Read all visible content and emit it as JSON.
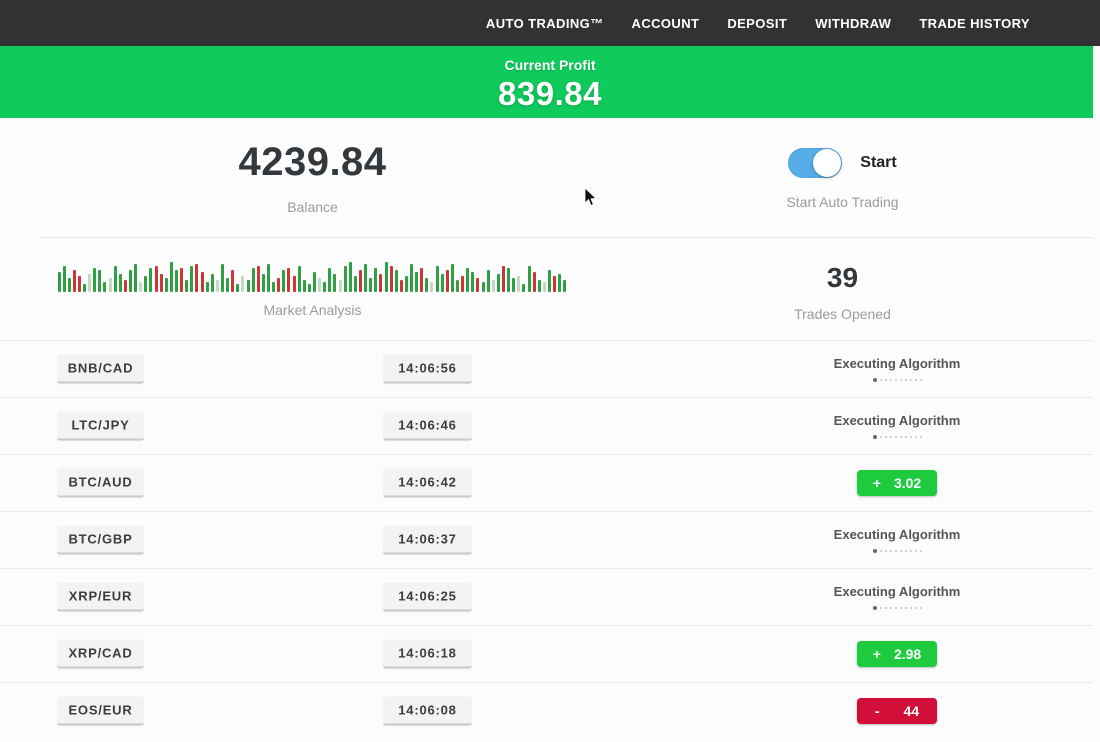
{
  "nav": {
    "items": [
      "AUTO TRADING™",
      "ACCOUNT",
      "DEPOSIT",
      "WITHDRAW",
      "TRADE HISTORY"
    ]
  },
  "banner": {
    "label": "Current Profit",
    "value": "839.84",
    "bg_color": "#0fcb5c"
  },
  "stats": {
    "balance": {
      "value": "4239.84",
      "label": "Balance"
    },
    "auto_trading": {
      "toggle_on": true,
      "toggle_label": "Start",
      "label": "Start Auto Trading",
      "toggle_color": "#56ade8"
    },
    "market": {
      "label": "Market Analysis"
    },
    "trades": {
      "value": "39",
      "label": "Trades Opened"
    }
  },
  "market_chart": {
    "bar_colors": {
      "g": "#2ea043",
      "r": "#cd3636",
      "l": "#c3d9c3"
    },
    "bars": "20g,26g,14g,22r,16r,8g,18l,24g,22g,10g,14l,26g,18g,12r,22g,28g,10l,16g,24g,26r,18r,14g,30g,22g,24r,12g,26g,28r,20r,10g,18g,12l,28g,14g,22r,8g,16l,12g,24g,26r,18g,28g,10g,14r,22g,24r,16r,26g,12g,8g,20g,14l,10g,24g,18g,12l,26g,30g,16g,22r,28g,14g,24g,18r,30g,26r,22g,12r,16g,28g,20g,24r,14g,10l,26g,18g,22r,28g,12g,16r,24g,20g,14r,10g,22g,12l,18g,26r,24g,14g,16l,8g,26g,20r,12g,10l,22g,16r,18g,12g"
  },
  "status_meta": {
    "executing_label": "Executing Algorithm",
    "profit_color": "#1ecb3f",
    "loss_color": "#d20f38"
  },
  "table": {
    "rows": [
      {
        "pair": "BNB/CAD",
        "time": "14:06:56",
        "status": {
          "type": "executing"
        }
      },
      {
        "pair": "LTC/JPY",
        "time": "14:06:46",
        "status": {
          "type": "executing"
        }
      },
      {
        "pair": "BTC/AUD",
        "time": "14:06:42",
        "status": {
          "type": "profit",
          "sign": "+",
          "value": "3.02"
        }
      },
      {
        "pair": "BTC/GBP",
        "time": "14:06:37",
        "status": {
          "type": "executing"
        }
      },
      {
        "pair": "XRP/EUR",
        "time": "14:06:25",
        "status": {
          "type": "executing"
        }
      },
      {
        "pair": "XRP/CAD",
        "time": "14:06:18",
        "status": {
          "type": "profit",
          "sign": "+",
          "value": "2.98"
        }
      },
      {
        "pair": "EOS/EUR",
        "time": "14:06:08",
        "status": {
          "type": "loss",
          "sign": "-",
          "value": "44"
        }
      }
    ]
  }
}
